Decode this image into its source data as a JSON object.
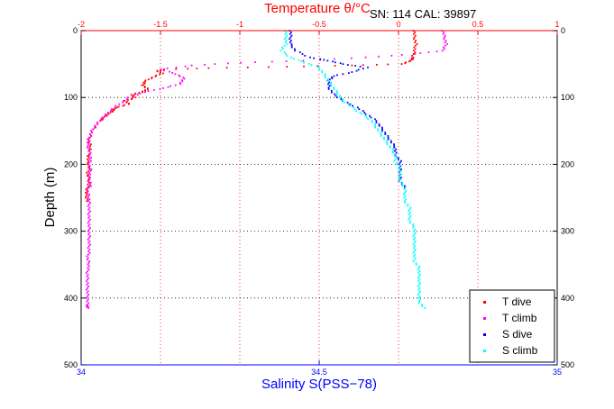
{
  "chart_data": {
    "type": "scatter",
    "title": "Temperature θ/°C",
    "annotation": "SN: 114  CAL: 39897",
    "xlabel_bottom": "Salinity S(PSS−78)",
    "ylabel": "Depth (m)",
    "top_axis": {
      "label": "Temperature θ/°C",
      "range": [
        -2,
        1
      ],
      "ticks": [
        "-2",
        "-1.5",
        "-1",
        "-0.5",
        "0",
        "0.5",
        "1"
      ],
      "tick_values": [
        -2,
        -1.5,
        -1,
        -0.5,
        0,
        0.5,
        1
      ],
      "color": "#ff0000"
    },
    "bottom_axis": {
      "label": "Salinity S(PSS−78)",
      "range": [
        34,
        35
      ],
      "ticks": [
        "34",
        "34.5",
        "35"
      ],
      "tick_values": [
        34,
        34.5,
        35
      ],
      "color": "#0000ff"
    },
    "y_axis": {
      "range": [
        0,
        500
      ],
      "inverted": true,
      "ticks": [
        "0",
        "100",
        "200",
        "300",
        "400",
        "500"
      ],
      "tick_values": [
        0,
        100,
        200,
        300,
        400,
        500
      ]
    },
    "grid": true,
    "grid_style": "dotted",
    "legend_position": "bottom-right",
    "series": [
      {
        "name": "T dive",
        "axis": "temperature",
        "color": "#ff0000",
        "points": [
          [
            0.1,
            0
          ],
          [
            0.1,
            10
          ],
          [
            0.11,
            20
          ],
          [
            0.1,
            30
          ],
          [
            0.09,
            40
          ],
          [
            0.08,
            45
          ],
          [
            0.02,
            50
          ],
          [
            -0.3,
            52
          ],
          [
            -0.7,
            54
          ],
          [
            -1.2,
            56
          ],
          [
            -1.47,
            58
          ],
          [
            -1.52,
            60
          ],
          [
            -1.49,
            64
          ],
          [
            -1.55,
            70
          ],
          [
            -1.6,
            76
          ],
          [
            -1.61,
            82
          ],
          [
            -1.58,
            88
          ],
          [
            -1.62,
            92
          ],
          [
            -1.68,
            96
          ],
          [
            -1.66,
            100
          ],
          [
            -1.72,
            105
          ],
          [
            -1.7,
            110
          ],
          [
            -1.78,
            115
          ],
          [
            -1.8,
            120
          ],
          [
            -1.83,
            125
          ],
          [
            -1.86,
            130
          ],
          [
            -1.88,
            135
          ],
          [
            -1.92,
            145
          ],
          [
            -1.94,
            155
          ],
          [
            -1.95,
            165
          ],
          [
            -1.94,
            175
          ],
          [
            -1.95,
            185
          ],
          [
            -1.96,
            195
          ],
          [
            -1.95,
            205
          ],
          [
            -1.96,
            215
          ],
          [
            -1.95,
            225
          ],
          [
            -1.96,
            235
          ],
          [
            -1.97,
            245
          ],
          [
            -1.96,
            255
          ]
        ]
      },
      {
        "name": "T climb",
        "axis": "temperature",
        "color": "#ff00ff",
        "points": [
          [
            0.28,
            0
          ],
          [
            0.29,
            10
          ],
          [
            0.3,
            20
          ],
          [
            0.28,
            30
          ],
          [
            0.1,
            35
          ],
          [
            -0.2,
            40
          ],
          [
            -0.6,
            45
          ],
          [
            -1.0,
            48
          ],
          [
            -1.3,
            52
          ],
          [
            -1.5,
            58
          ],
          [
            -1.4,
            65
          ],
          [
            -1.35,
            72
          ],
          [
            -1.38,
            80
          ],
          [
            -1.48,
            86
          ],
          [
            -1.6,
            92
          ],
          [
            -1.7,
            100
          ],
          [
            -1.76,
            110
          ],
          [
            -1.82,
            120
          ],
          [
            -1.86,
            130
          ],
          [
            -1.9,
            140
          ],
          [
            -1.93,
            150
          ],
          [
            -1.95,
            160
          ],
          [
            -1.96,
            170
          ],
          [
            -1.95,
            180
          ],
          [
            -1.94,
            190
          ],
          [
            -1.95,
            200
          ],
          [
            -1.94,
            210
          ],
          [
            -1.95,
            220
          ],
          [
            -1.94,
            230
          ],
          [
            -1.96,
            240
          ],
          [
            -1.95,
            250
          ],
          [
            -1.95,
            260
          ],
          [
            -1.95,
            270
          ],
          [
            -1.95,
            280
          ],
          [
            -1.95,
            290
          ],
          [
            -1.95,
            300
          ],
          [
            -1.95,
            310
          ],
          [
            -1.95,
            320
          ],
          [
            -1.95,
            330
          ],
          [
            -1.96,
            340
          ],
          [
            -1.95,
            350
          ],
          [
            -1.96,
            360
          ],
          [
            -1.96,
            370
          ],
          [
            -1.96,
            380
          ],
          [
            -1.96,
            390
          ],
          [
            -1.96,
            400
          ],
          [
            -1.96,
            410
          ],
          [
            -1.96,
            415
          ]
        ]
      },
      {
        "name": "S dive",
        "axis": "salinity",
        "color": "#0000ff",
        "points": [
          [
            34.44,
            0
          ],
          [
            34.44,
            10
          ],
          [
            34.44,
            20
          ],
          [
            34.45,
            30
          ],
          [
            34.48,
            40
          ],
          [
            34.52,
            45
          ],
          [
            34.55,
            50
          ],
          [
            34.6,
            55
          ],
          [
            34.57,
            62
          ],
          [
            34.53,
            68
          ],
          [
            34.52,
            75
          ],
          [
            34.52,
            85
          ],
          [
            34.53,
            95
          ],
          [
            34.55,
            105
          ],
          [
            34.58,
            115
          ],
          [
            34.6,
            125
          ],
          [
            34.62,
            135
          ],
          [
            34.63,
            145
          ],
          [
            34.64,
            155
          ],
          [
            34.65,
            165
          ],
          [
            34.66,
            175
          ],
          [
            34.66,
            185
          ],
          [
            34.67,
            195
          ],
          [
            34.67,
            205
          ],
          [
            34.67,
            215
          ],
          [
            34.67,
            225
          ],
          [
            34.68,
            235
          ]
        ]
      },
      {
        "name": "S climb",
        "axis": "salinity",
        "color": "#00ffff",
        "points": [
          [
            34.43,
            0
          ],
          [
            34.43,
            10
          ],
          [
            34.43,
            20
          ],
          [
            34.42,
            30
          ],
          [
            34.44,
            40
          ],
          [
            34.47,
            48
          ],
          [
            34.5,
            55
          ],
          [
            34.51,
            65
          ],
          [
            34.52,
            75
          ],
          [
            34.53,
            85
          ],
          [
            34.54,
            95
          ],
          [
            34.55,
            105
          ],
          [
            34.57,
            115
          ],
          [
            34.59,
            125
          ],
          [
            34.61,
            135
          ],
          [
            34.62,
            145
          ],
          [
            34.63,
            155
          ],
          [
            34.64,
            165
          ],
          [
            34.65,
            175
          ],
          [
            34.66,
            185
          ],
          [
            34.66,
            195
          ],
          [
            34.67,
            205
          ],
          [
            34.67,
            215
          ],
          [
            34.67,
            225
          ],
          [
            34.68,
            235
          ],
          [
            34.68,
            245
          ],
          [
            34.68,
            255
          ],
          [
            34.69,
            265
          ],
          [
            34.69,
            275
          ],
          [
            34.69,
            285
          ],
          [
            34.7,
            295
          ],
          [
            34.7,
            305
          ],
          [
            34.7,
            315
          ],
          [
            34.7,
            325
          ],
          [
            34.7,
            335
          ],
          [
            34.7,
            345
          ],
          [
            34.71,
            355
          ],
          [
            34.71,
            365
          ],
          [
            34.71,
            375
          ],
          [
            34.71,
            385
          ],
          [
            34.71,
            395
          ],
          [
            34.71,
            405
          ],
          [
            34.72,
            415
          ]
        ]
      }
    ]
  }
}
